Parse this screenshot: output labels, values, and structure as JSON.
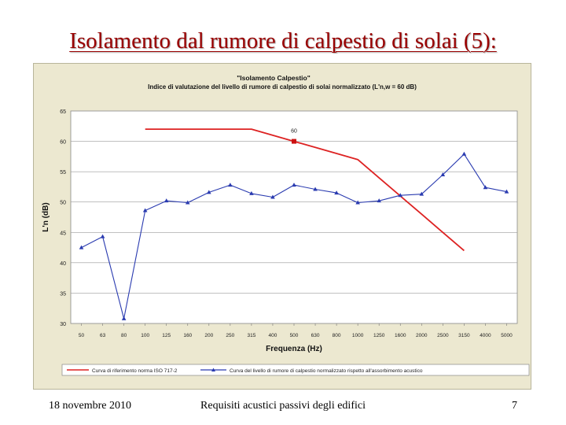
{
  "slide": {
    "title": "Isolamento dal rumore di calpestio di solai (5):",
    "footer_date": "18 novembre 2010",
    "footer_center": "Requisiti acustici passivi degli edifici",
    "page_number": "7"
  },
  "chart_data": {
    "type": "line",
    "title": "\"Isolamento Calpestio\"",
    "subtitle": "Indice di valutazione del livello di rumore di calpestio di solai normalizzato (L'n,w =  60 dB)",
    "xlabel": "Frequenza (Hz)",
    "ylabel": "L'n (dB)",
    "ylim": [
      30,
      65
    ],
    "yticks": [
      "30",
      "35",
      "40",
      "45",
      "50",
      "55",
      "60",
      "65"
    ],
    "categories": [
      "50",
      "63",
      "80",
      "100",
      "125",
      "160",
      "200",
      "250",
      "315",
      "400",
      "500",
      "630",
      "800",
      "1000",
      "1250",
      "1600",
      "2000",
      "2500",
      "3150",
      "4000",
      "5000"
    ],
    "grid": "horizontal",
    "legend_position": "bottom",
    "series": [
      {
        "name": "Curva di riferimento norma ISO 717-2",
        "color": "#dd2222",
        "marker": "none",
        "values": [
          null,
          null,
          null,
          62,
          62,
          62,
          62,
          62,
          62,
          61,
          60,
          59,
          58,
          57,
          54,
          51,
          48,
          45,
          42,
          null,
          null
        ]
      },
      {
        "name": "Curva del livello di rumore di calpestio normalizzato rispetto all'assorbimento acustico",
        "color": "#2a3bb0",
        "marker": "triangle",
        "values": [
          42.5,
          44.3,
          30.8,
          48.6,
          50.2,
          49.9,
          51.6,
          52.8,
          51.4,
          50.8,
          52.8,
          52.1,
          51.5,
          49.9,
          50.2,
          51.1,
          51.3,
          54.5,
          57.9,
          52.4,
          51.7
        ]
      }
    ],
    "annotations": [
      {
        "text": "60",
        "category": "500",
        "value": 60
      }
    ]
  }
}
